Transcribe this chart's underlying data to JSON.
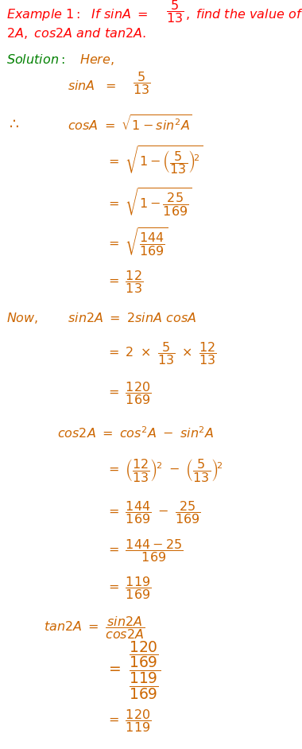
{
  "bg_color": "#ffffff",
  "red": "#ff0000",
  "brown": "#cc6600",
  "green": "#008000",
  "figsize": [
    3.8,
    9.42
  ],
  "dpi": 100,
  "fs": 11.5
}
